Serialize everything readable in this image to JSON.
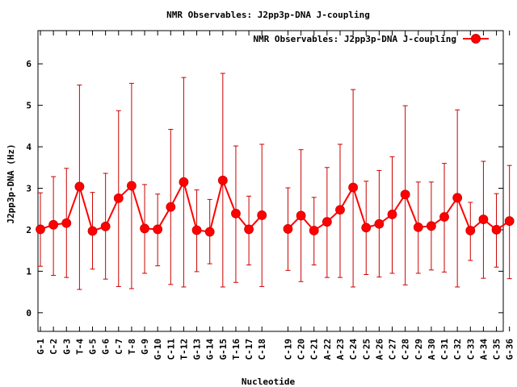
{
  "chart_data": {
    "type": "line",
    "title": "NMR Observables: J2pp3p-DNA J-coupling",
    "xlabel": "Nucleotide",
    "ylabel": "J2pp3p-DNA (Hz)",
    "ylim": [
      -0.45,
      6.8
    ],
    "yticks": [
      0,
      1,
      2,
      3,
      4,
      5,
      6
    ],
    "grid": false,
    "legend_position": "top-right",
    "colors": {
      "series": "#ff0000",
      "errorbar": "#cc0000"
    },
    "series": [
      {
        "name": "NMR Observables: J2pp3p-DNA J-coupling",
        "segments": [
          {
            "categories": [
              "G-1",
              "C-2",
              "G-3",
              "T-4",
              "G-5",
              "G-6",
              "C-7",
              "T-8",
              "G-9",
              "G-10",
              "C-11",
              "T-12",
              "G-13",
              "G-14",
              "G-15",
              "T-16",
              "C-17",
              "C-18"
            ],
            "values": [
              2.01,
              2.12,
              2.16,
              3.04,
              1.97,
              2.08,
              2.76,
              3.06,
              2.03,
              2.01,
              2.55,
              3.15,
              1.99,
              1.95,
              3.19,
              2.39,
              2.01,
              2.35
            ],
            "err_low": [
              1.12,
              0.9,
              0.85,
              0.56,
              1.05,
              0.81,
              0.63,
              0.58,
              0.95,
              1.13,
              0.68,
              0.62,
              0.99,
              1.18,
              0.62,
              0.73,
              1.15,
              0.63
            ],
            "err_high": [
              2.89,
              3.28,
              3.48,
              5.49,
              2.9,
              3.36,
              4.87,
              5.53,
              3.09,
              2.86,
              4.42,
              5.67,
              2.96,
              2.73,
              5.77,
              4.02,
              2.81,
              4.06
            ]
          },
          {
            "categories": [
              "C-19",
              "C-20",
              "C-21",
              "A-22",
              "A-23",
              "C-24",
              "C-25",
              "A-26",
              "C-27",
              "C-28",
              "C-29",
              "A-30",
              "C-31",
              "C-32",
              "C-33",
              "A-34",
              "C-35",
              "G-36"
            ],
            "values": [
              2.02,
              2.34,
              1.98,
              2.19,
              2.48,
              3.02,
              2.05,
              2.14,
              2.37,
              2.85,
              2.06,
              2.09,
              2.31,
              2.77,
              1.98,
              2.25,
              2.0,
              2.21
            ],
            "err_low": [
              1.02,
              0.75,
              1.15,
              0.85,
              0.85,
              0.62,
              0.92,
              0.86,
              0.95,
              0.67,
              0.95,
              1.03,
              0.98,
              0.62,
              1.26,
              0.83,
              1.1,
              0.82
            ],
            "err_high": [
              3.01,
              3.93,
              2.78,
              3.5,
              4.06,
              5.38,
              3.17,
              3.43,
              3.76,
              4.99,
              3.15,
              3.15,
              3.6,
              4.89,
              2.66,
              3.65,
              2.87,
              3.55
            ]
          }
        ]
      }
    ]
  }
}
